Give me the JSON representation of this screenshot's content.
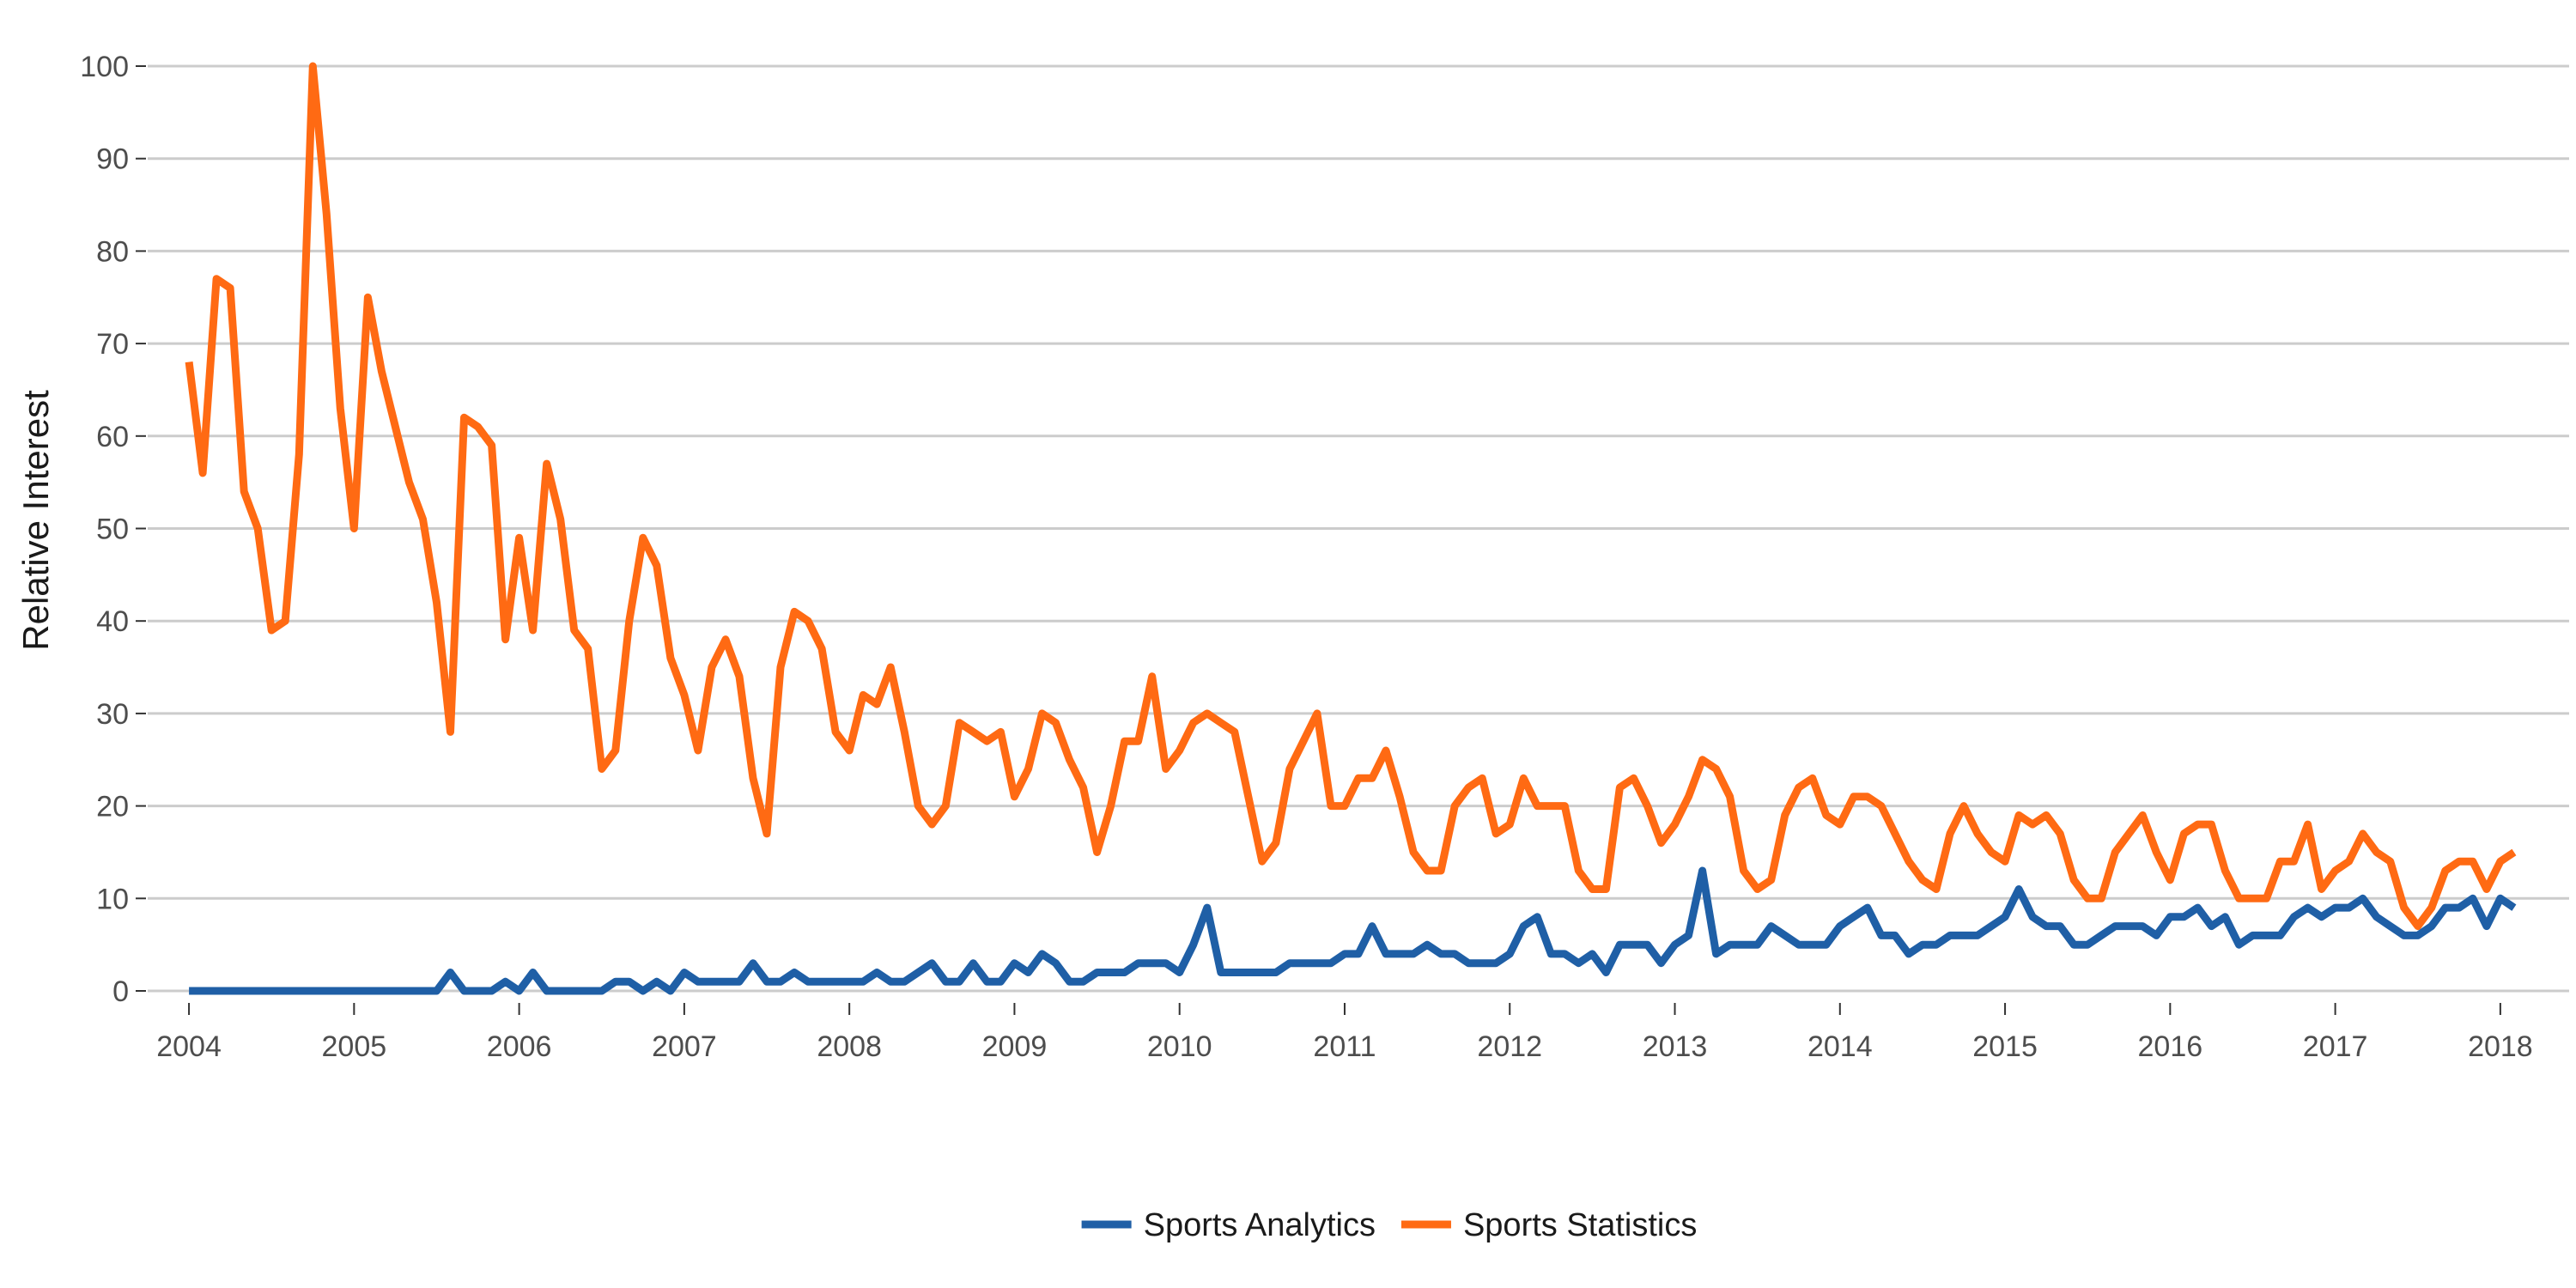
{
  "chart_data": {
    "type": "line",
    "title": "",
    "xlabel": "",
    "ylabel": "Relative Interest",
    "ylim": [
      0,
      100
    ],
    "xlim": [
      "2003-10",
      "2018-06"
    ],
    "x_ticks": [
      "2004",
      "2005",
      "2006",
      "2007",
      "2008",
      "2009",
      "2010",
      "2011",
      "2012",
      "2013",
      "2014",
      "2015",
      "2016",
      "2017",
      "2018"
    ],
    "y_ticks": [
      0,
      10,
      20,
      30,
      40,
      50,
      60,
      70,
      80,
      90,
      100
    ],
    "grid": "horizontal",
    "legend_position": "bottom",
    "start": "2004-01",
    "frequency": "monthly",
    "series": [
      {
        "name": "Sports Analytics",
        "color": "#1f5fa6",
        "values": [
          0,
          0,
          0,
          0,
          0,
          0,
          0,
          0,
          0,
          0,
          0,
          0,
          0,
          0,
          0,
          0,
          0,
          0,
          0,
          2,
          0,
          0,
          0,
          1,
          0,
          2,
          0,
          0,
          0,
          0,
          0,
          1,
          1,
          0,
          1,
          0,
          2,
          1,
          1,
          1,
          1,
          3,
          1,
          1,
          2,
          1,
          1,
          1,
          1,
          1,
          2,
          1,
          1,
          2,
          3,
          1,
          1,
          3,
          1,
          1,
          3,
          2,
          4,
          3,
          1,
          1,
          2,
          2,
          2,
          3,
          3,
          3,
          2,
          5,
          9,
          2,
          2,
          2,
          2,
          2,
          3,
          3,
          3,
          3,
          4,
          4,
          7,
          4,
          4,
          4,
          5,
          4,
          4,
          3,
          3,
          3,
          4,
          7,
          8,
          4,
          4,
          3,
          4,
          2,
          5,
          5,
          5,
          3,
          5,
          6,
          13,
          4,
          5,
          5,
          5,
          7,
          6,
          5,
          5,
          5,
          7,
          8,
          9,
          6,
          6,
          4,
          5,
          5,
          6,
          6,
          6,
          7,
          8,
          11,
          8,
          7,
          7,
          5,
          5,
          6,
          7,
          7,
          7,
          6,
          8,
          8,
          9,
          7,
          8,
          5,
          6,
          6,
          6,
          8,
          9,
          8,
          9,
          9,
          10,
          8,
          7,
          6,
          6,
          7,
          9,
          9,
          10,
          7,
          10,
          9
        ]
      },
      {
        "name": "Sports Statistics",
        "color": "#ff6a13",
        "values": [
          68,
          56,
          77,
          76,
          54,
          50,
          39,
          40,
          58,
          100,
          84,
          63,
          50,
          75,
          67,
          61,
          55,
          51,
          42,
          28,
          62,
          61,
          59,
          38,
          49,
          39,
          57,
          51,
          39,
          37,
          24,
          26,
          40,
          49,
          46,
          36,
          32,
          26,
          35,
          38,
          34,
          23,
          17,
          35,
          41,
          40,
          37,
          28,
          26,
          32,
          31,
          35,
          28,
          20,
          18,
          20,
          29,
          28,
          27,
          28,
          21,
          24,
          30,
          29,
          25,
          22,
          15,
          20,
          27,
          27,
          34,
          24,
          26,
          29,
          30,
          29,
          28,
          21,
          14,
          16,
          24,
          27,
          30,
          20,
          20,
          23,
          23,
          26,
          21,
          15,
          13,
          13,
          20,
          22,
          23,
          17,
          18,
          23,
          20,
          20,
          20,
          13,
          11,
          11,
          22,
          23,
          20,
          16,
          18,
          21,
          25,
          24,
          21,
          13,
          11,
          12,
          19,
          22,
          23,
          19,
          18,
          21,
          21,
          20,
          17,
          14,
          12,
          11,
          17,
          20,
          17,
          15,
          14,
          19,
          18,
          19,
          17,
          12,
          10,
          10,
          15,
          17,
          19,
          15,
          12,
          17,
          18,
          18,
          13,
          10,
          10,
          10,
          14,
          14,
          18,
          11,
          13,
          14,
          17,
          15,
          14,
          9,
          7,
          9,
          13,
          14,
          14,
          11,
          14,
          15
        ]
      }
    ]
  }
}
